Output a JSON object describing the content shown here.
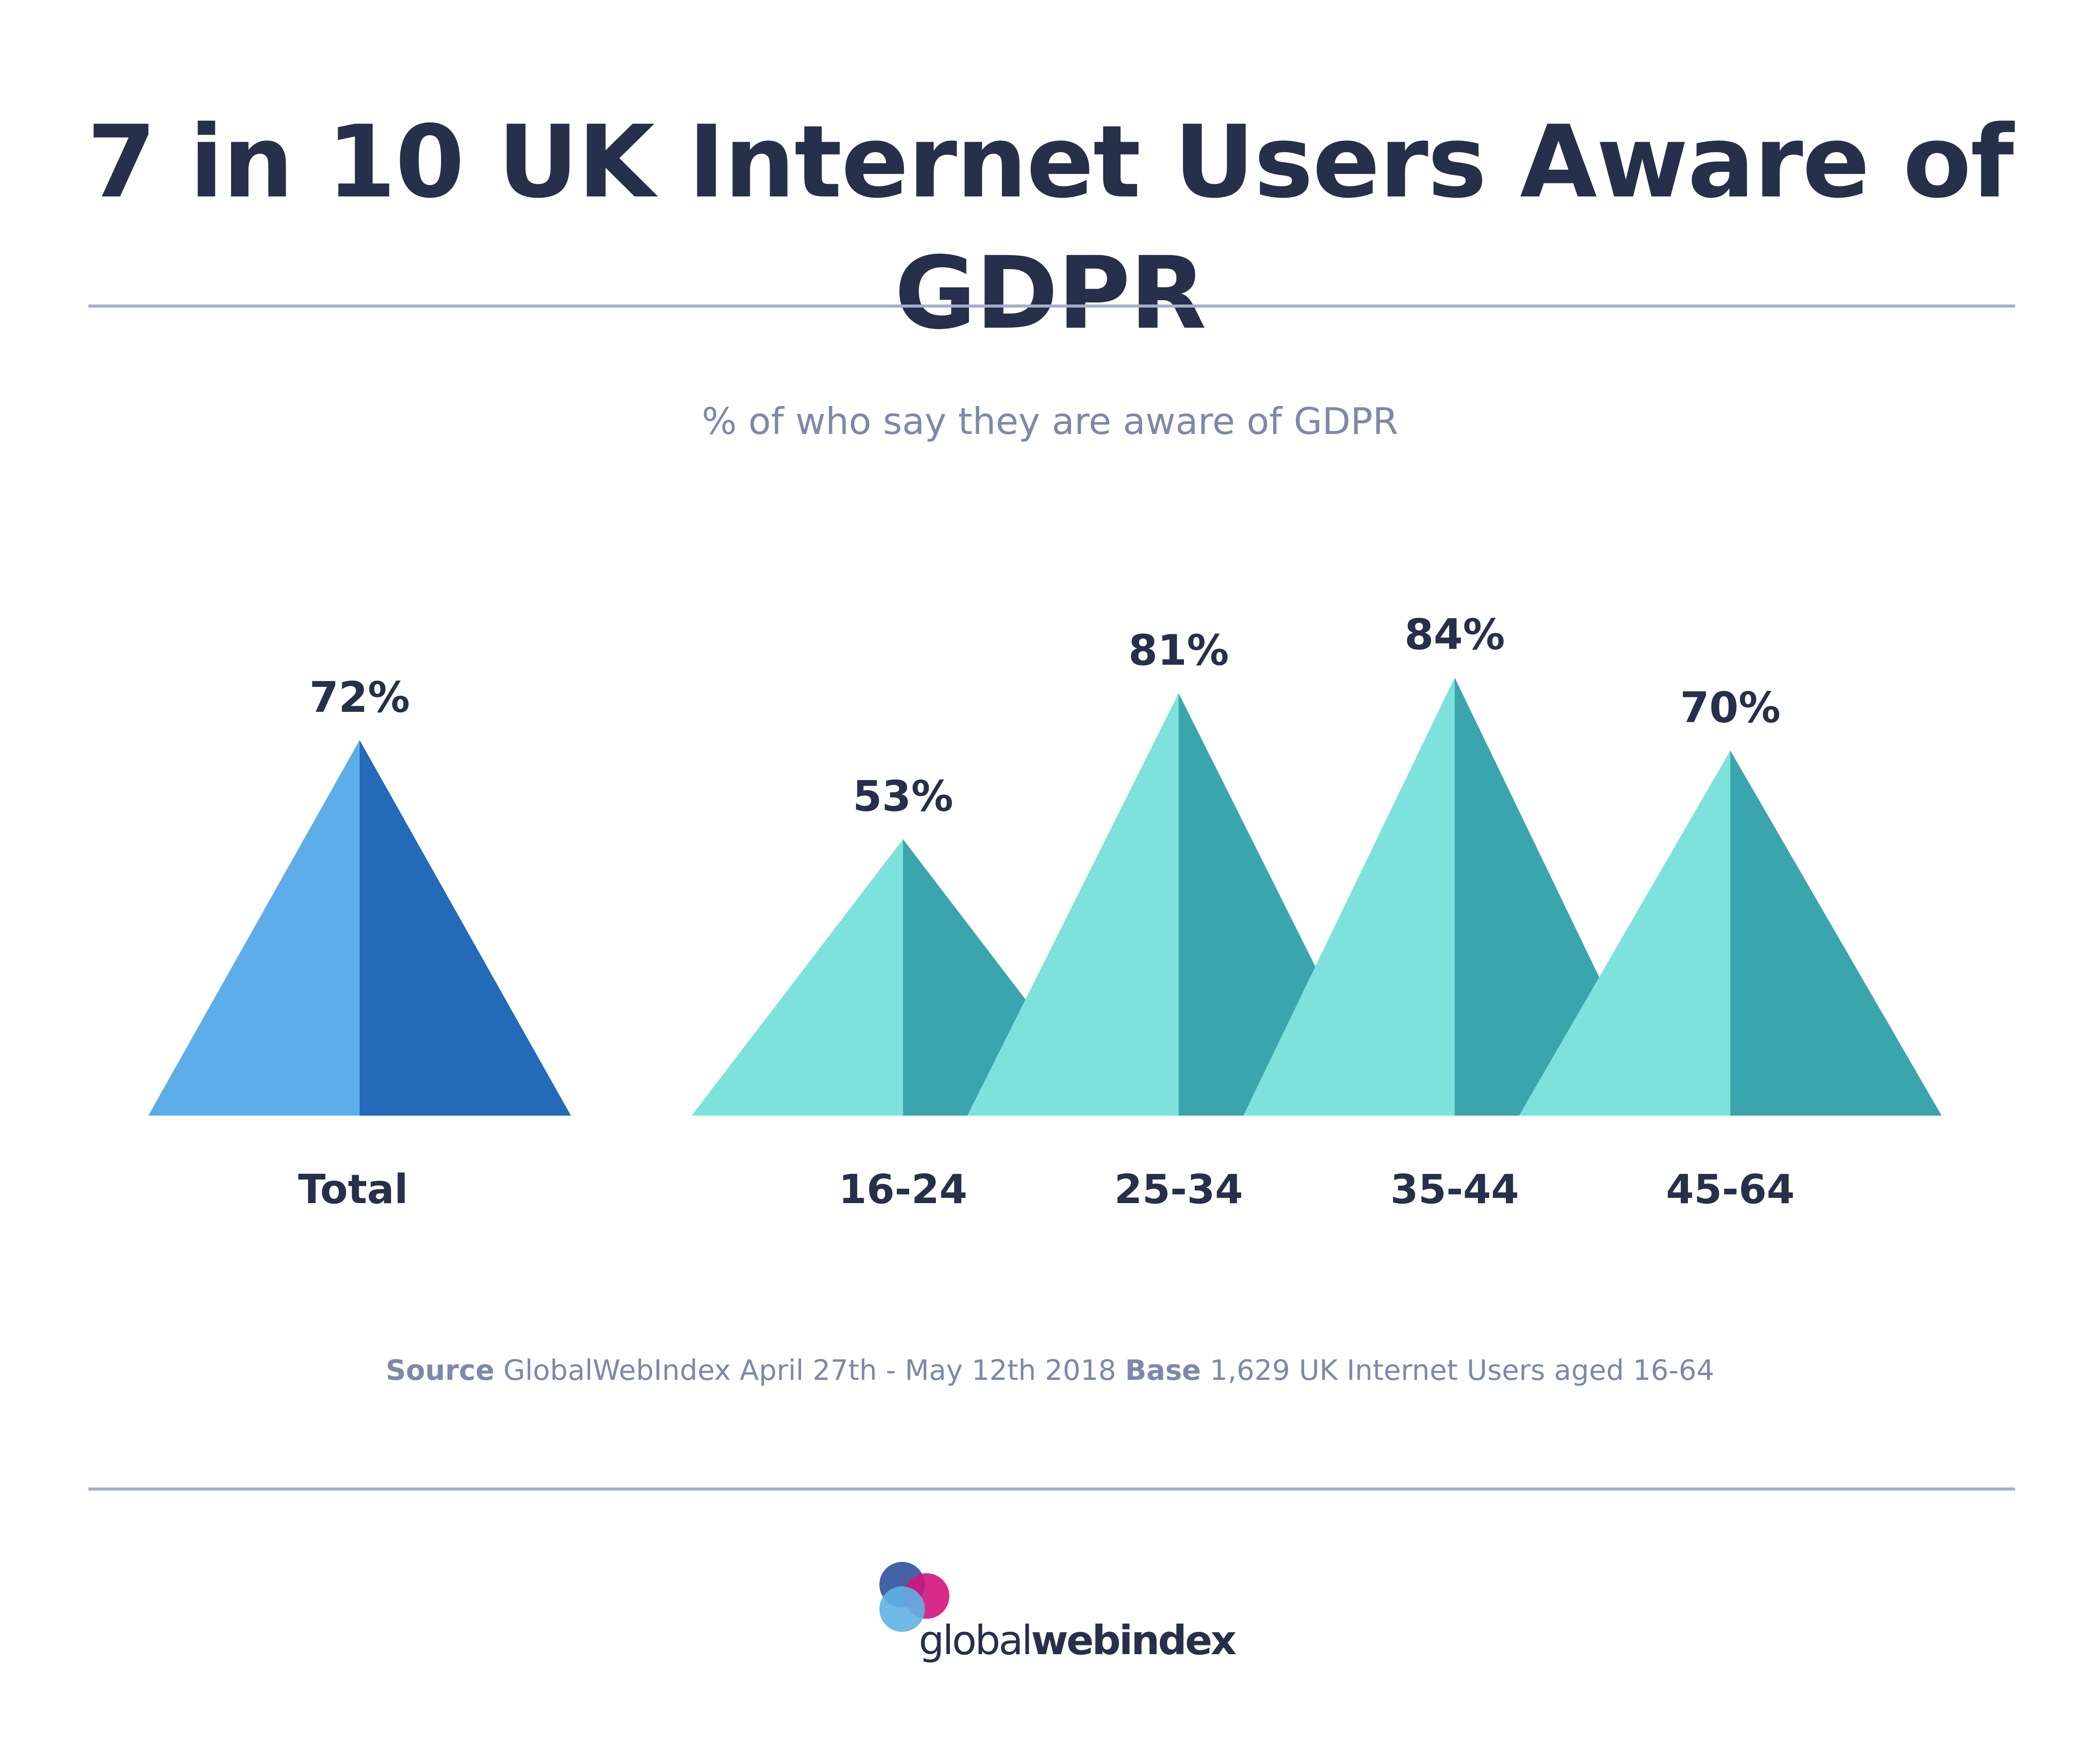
{
  "title": "7 in 10 UK Internet Users Aware of GDPR",
  "subtitle": "% of who say they are aware of GDPR",
  "source": {
    "source_label": "Source",
    "source_text": "GlobalWebIndex April 27th - May 12th 2018",
    "base_label": "Base",
    "base_text": "1,629 UK Internet Users aged 16-64"
  },
  "brand": {
    "word_light": "global",
    "word_bold": "webindex",
    "colors": [
      "#3a5aa0",
      "#d4147c",
      "#5fb3e3",
      "#1c2456"
    ]
  },
  "colors": {
    "total_light": "#5dade8",
    "total_dark": "#236ab8",
    "age_light": "#7de2dc",
    "age_dark": "#3ba5ae",
    "text": "#27304a",
    "muted": "#7e89a8",
    "rule": "#a4aecb"
  },
  "chart_data": {
    "type": "bar",
    "shape": "triangle",
    "title": "7 in 10 UK Internet Users Aware of GDPR",
    "subtitle": "% of who say they are aware of GDPR",
    "unit": "%",
    "categories": [
      "Total",
      "16-24",
      "25-34",
      "35-44",
      "45-64"
    ],
    "values": [
      72,
      53,
      81,
      84,
      70
    ],
    "value_labels": [
      "72%",
      "53%",
      "81%",
      "84%",
      "70%"
    ],
    "groups": [
      "total",
      "age",
      "age",
      "age",
      "age"
    ]
  }
}
